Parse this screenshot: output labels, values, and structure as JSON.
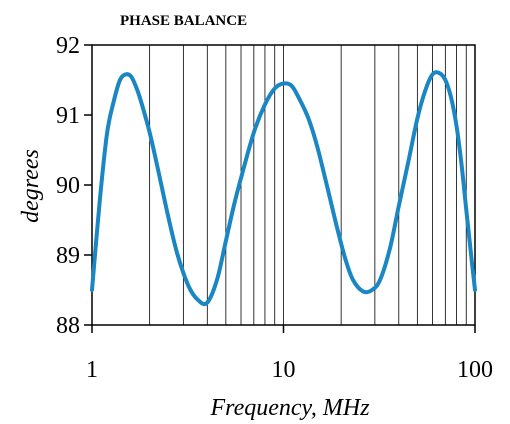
{
  "chart_data": {
    "type": "line",
    "title": "PHASE BALANCE",
    "xlabel": "Frequency, MHz",
    "ylabel": "degrees",
    "x_scale": "log",
    "xlim": [
      1,
      100
    ],
    "ylim": [
      88,
      92
    ],
    "x_ticks": [
      "1",
      "10",
      "100"
    ],
    "y_ticks": [
      "88",
      "89",
      "90",
      "91",
      "92"
    ],
    "grid": true,
    "line_color": "#1a86c3",
    "series": [
      {
        "x": [
          1.0,
          1.1,
          1.2,
          1.3,
          1.4,
          1.5,
          1.6,
          1.7,
          1.8,
          2.0,
          2.2,
          2.5,
          2.8,
          3.2,
          3.6,
          4.0,
          4.5,
          5.0,
          5.5,
          6.0,
          7.0,
          8.0,
          9.0,
          10.0,
          11.0,
          12.0,
          13.5,
          15.0,
          17.0,
          19.0,
          21.0,
          23.0,
          26.0,
          29.0,
          32.0,
          36.0,
          40.0,
          45.0,
          50.0,
          55.0,
          60.0,
          65.0,
          70.0,
          75.0,
          80.0,
          85.0,
          90.0,
          95.0,
          100.0
        ],
        "y": [
          88.5,
          89.8,
          90.75,
          91.2,
          91.5,
          91.58,
          91.55,
          91.4,
          91.2,
          90.75,
          90.25,
          89.55,
          89.0,
          88.55,
          88.35,
          88.32,
          88.65,
          89.2,
          89.7,
          90.1,
          90.75,
          91.15,
          91.38,
          91.45,
          91.42,
          91.25,
          90.95,
          90.55,
          89.95,
          89.4,
          88.95,
          88.65,
          88.48,
          88.5,
          88.65,
          89.1,
          89.7,
          90.35,
          90.95,
          91.35,
          91.58,
          91.6,
          91.5,
          91.25,
          90.85,
          90.3,
          89.65,
          89.05,
          88.5
        ]
      }
    ]
  }
}
